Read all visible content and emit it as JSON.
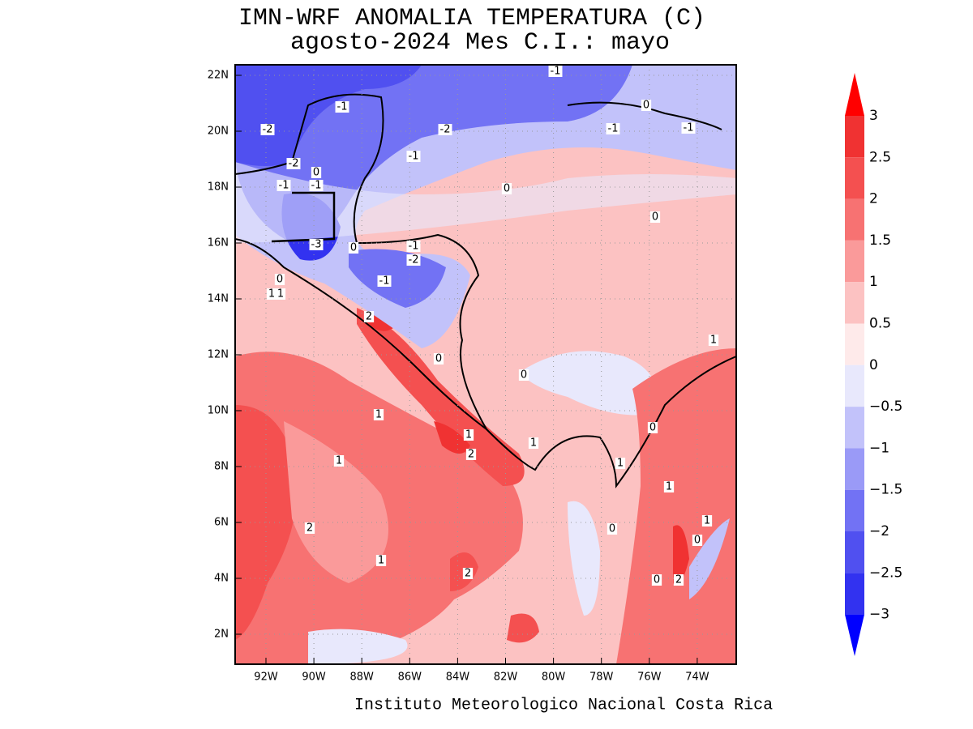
{
  "header": {
    "title": "IMN-WRF  ANOMALIA TEMPERATURA (C)",
    "subtitle": "agosto-2024 Mes C.I.: mayo"
  },
  "map": {
    "lon_ticks": [
      "92W",
      "90W",
      "88W",
      "86W",
      "84W",
      "82W",
      "80W",
      "78W",
      "76W",
      "74W"
    ],
    "lat_ticks": [
      "22N",
      "20N",
      "18N",
      "16N",
      "14N",
      "12N",
      "10N",
      "8N",
      "6N",
      "4N",
      "2N"
    ],
    "contour_labels": [
      "-1",
      "0",
      "-1",
      "-2",
      "-2",
      "-1",
      "-1",
      "-1",
      "-2",
      "0",
      "-1",
      "-1",
      "0",
      "0",
      "-3",
      "0",
      "-1",
      "-2",
      "0",
      "-1",
      "1",
      "1",
      "2",
      "0",
      "0",
      "1",
      "1",
      "0",
      "1",
      "1",
      "2",
      "1",
      "1",
      "1",
      "1",
      "0",
      "0",
      "2",
      "1",
      "2",
      "0",
      "2"
    ]
  },
  "colorbar": {
    "labels": [
      "3",
      "2.5",
      "2",
      "1.5",
      "1",
      "0.5",
      "0",
      "−0.5",
      "−1",
      "−1.5",
      "−2",
      "−2.5",
      "−3"
    ],
    "colors": [
      "#ff0000",
      "#f03232",
      "#f45050",
      "#f77272",
      "#fa9a9a",
      "#fcc2c2",
      "#feeaea",
      "#e8e8fc",
      "#c2c2fa",
      "#9a9af7",
      "#7272f4",
      "#5050f0",
      "#3232f0",
      "#0000ff"
    ]
  },
  "footer": {
    "credit": "Instituto Meteorologico Nacional Costa Rica"
  }
}
